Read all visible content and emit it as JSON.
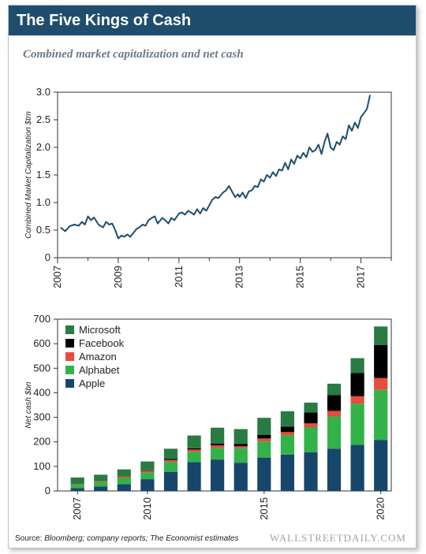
{
  "header": {
    "title": "The Five Kings of Cash"
  },
  "subtitle": "Combined market capitalization and net cash",
  "footer": {
    "source_label": "Source:",
    "source_text": "Bloomberg; company reports; The Economist estimates",
    "logo": "WALLSTREETDAILY.COM"
  },
  "colors": {
    "header_bg": "#1f4e6d",
    "line": "#1f4e6d",
    "microsoft": "#2a7a43",
    "facebook": "#000000",
    "amazon": "#e74c3c",
    "alphabet": "#33b24a",
    "apple": "#16476b"
  },
  "chart_data": [
    {
      "type": "line",
      "title": "",
      "xlabel": "",
      "ylabel": "Combined Market Capitalization $trn",
      "xlim": [
        2007,
        2018
      ],
      "ylim": [
        0,
        3.0
      ],
      "xticks": [
        "2007",
        "2009",
        "2011",
        "2013",
        "2015",
        "2017"
      ],
      "yticks": [
        "0",
        "0.5",
        "1.0",
        "1.5",
        "2.0",
        "2.5",
        "3.0"
      ],
      "grid": false,
      "series": [
        {
          "name": "",
          "x": [
            2007.1,
            2007.25,
            2007.4,
            2007.55,
            2007.7,
            2007.8,
            2007.9,
            2008.0,
            2008.1,
            2008.2,
            2008.35,
            2008.5,
            2008.6,
            2008.7,
            2008.8,
            2008.9,
            2009.0,
            2009.1,
            2009.2,
            2009.3,
            2009.4,
            2009.5,
            2009.6,
            2009.7,
            2009.8,
            2009.9,
            2010.0,
            2010.1,
            2010.2,
            2010.3,
            2010.45,
            2010.55,
            2010.65,
            2010.75,
            2010.85,
            2010.95,
            2011.0,
            2011.1,
            2011.2,
            2011.3,
            2011.4,
            2011.5,
            2011.6,
            2011.7,
            2011.8,
            2011.9,
            2012.0,
            2012.1,
            2012.2,
            2012.3,
            2012.45,
            2012.55,
            2012.65,
            2012.75,
            2012.85,
            2012.95,
            2013.0,
            2013.1,
            2013.2,
            2013.3,
            2013.4,
            2013.5,
            2013.6,
            2013.7,
            2013.8,
            2013.9,
            2014.0,
            2014.1,
            2014.2,
            2014.3,
            2014.4,
            2014.5,
            2014.6,
            2014.7,
            2014.8,
            2014.9,
            2015.0,
            2015.1,
            2015.2,
            2015.3,
            2015.4,
            2015.5,
            2015.6,
            2015.7,
            2015.8,
            2015.9,
            2016.0,
            2016.1,
            2016.2,
            2016.3,
            2016.4,
            2016.5,
            2016.6,
            2016.7,
            2016.8,
            2016.9,
            2017.0,
            2017.1,
            2017.2,
            2017.3
          ],
          "y": [
            0.55,
            0.48,
            0.57,
            0.6,
            0.58,
            0.65,
            0.6,
            0.75,
            0.68,
            0.73,
            0.6,
            0.55,
            0.65,
            0.6,
            0.62,
            0.5,
            0.35,
            0.4,
            0.38,
            0.42,
            0.38,
            0.45,
            0.52,
            0.55,
            0.6,
            0.58,
            0.68,
            0.72,
            0.75,
            0.62,
            0.72,
            0.68,
            0.62,
            0.72,
            0.68,
            0.76,
            0.8,
            0.82,
            0.78,
            0.85,
            0.82,
            0.78,
            0.88,
            0.8,
            0.9,
            0.85,
            0.95,
            1.05,
            1.1,
            1.08,
            1.18,
            1.22,
            1.3,
            1.2,
            1.1,
            1.15,
            1.1,
            1.18,
            1.08,
            1.2,
            1.22,
            1.3,
            1.28,
            1.42,
            1.38,
            1.5,
            1.45,
            1.55,
            1.48,
            1.6,
            1.58,
            1.72,
            1.6,
            1.78,
            1.7,
            1.85,
            1.8,
            1.9,
            1.82,
            2.0,
            1.92,
            1.95,
            2.05,
            1.88,
            2.1,
            2.25,
            2.0,
            1.95,
            2.1,
            2.05,
            2.2,
            2.15,
            2.4,
            2.3,
            2.45,
            2.35,
            2.55,
            2.62,
            2.7,
            2.95
          ]
        }
      ]
    },
    {
      "type": "bar",
      "stacked": true,
      "title": "",
      "xlabel": "",
      "ylabel": "Net cash $bn",
      "ylim": [
        0,
        700
      ],
      "yticks": [
        "0",
        "100",
        "200",
        "300",
        "400",
        "500",
        "600",
        "700"
      ],
      "xtick_labels": [
        {
          "label": "2007",
          "index": 0
        },
        {
          "label": "2010",
          "index": 3
        },
        {
          "label": "2015",
          "index": 8
        },
        {
          "label": "2020",
          "index": 13
        }
      ],
      "categories": [
        "2007",
        "2008",
        "2009",
        "2010",
        "2011",
        "2012",
        "2013",
        "2014",
        "2015",
        "2016",
        "2017",
        "2018",
        "2019",
        "2020"
      ],
      "legend_position": "top-left",
      "series": [
        {
          "name": "Apple",
          "color_key": "apple",
          "values": [
            12,
            18,
            28,
            48,
            78,
            118,
            128,
            114,
            136,
            148,
            158,
            172,
            188,
            207
          ]
        },
        {
          "name": "Alphabet",
          "color_key": "alphabet",
          "values": [
            15,
            18,
            25,
            28,
            40,
            42,
            48,
            60,
            66,
            80,
            102,
            132,
            168,
            205
          ]
        },
        {
          "name": "Amazon",
          "color_key": "amazon",
          "values": [
            2,
            3,
            5,
            6,
            8,
            9,
            10,
            8,
            12,
            12,
            15,
            22,
            30,
            48
          ]
        },
        {
          "name": "Facebook",
          "color_key": "facebook",
          "values": [
            0,
            0,
            0,
            2,
            4,
            5,
            7,
            10,
            14,
            22,
            45,
            65,
            95,
            135
          ]
        },
        {
          "name": "Microsoft",
          "color_key": "microsoft",
          "values": [
            26,
            27,
            30,
            36,
            42,
            52,
            65,
            60,
            70,
            63,
            40,
            46,
            60,
            75
          ]
        }
      ]
    }
  ]
}
